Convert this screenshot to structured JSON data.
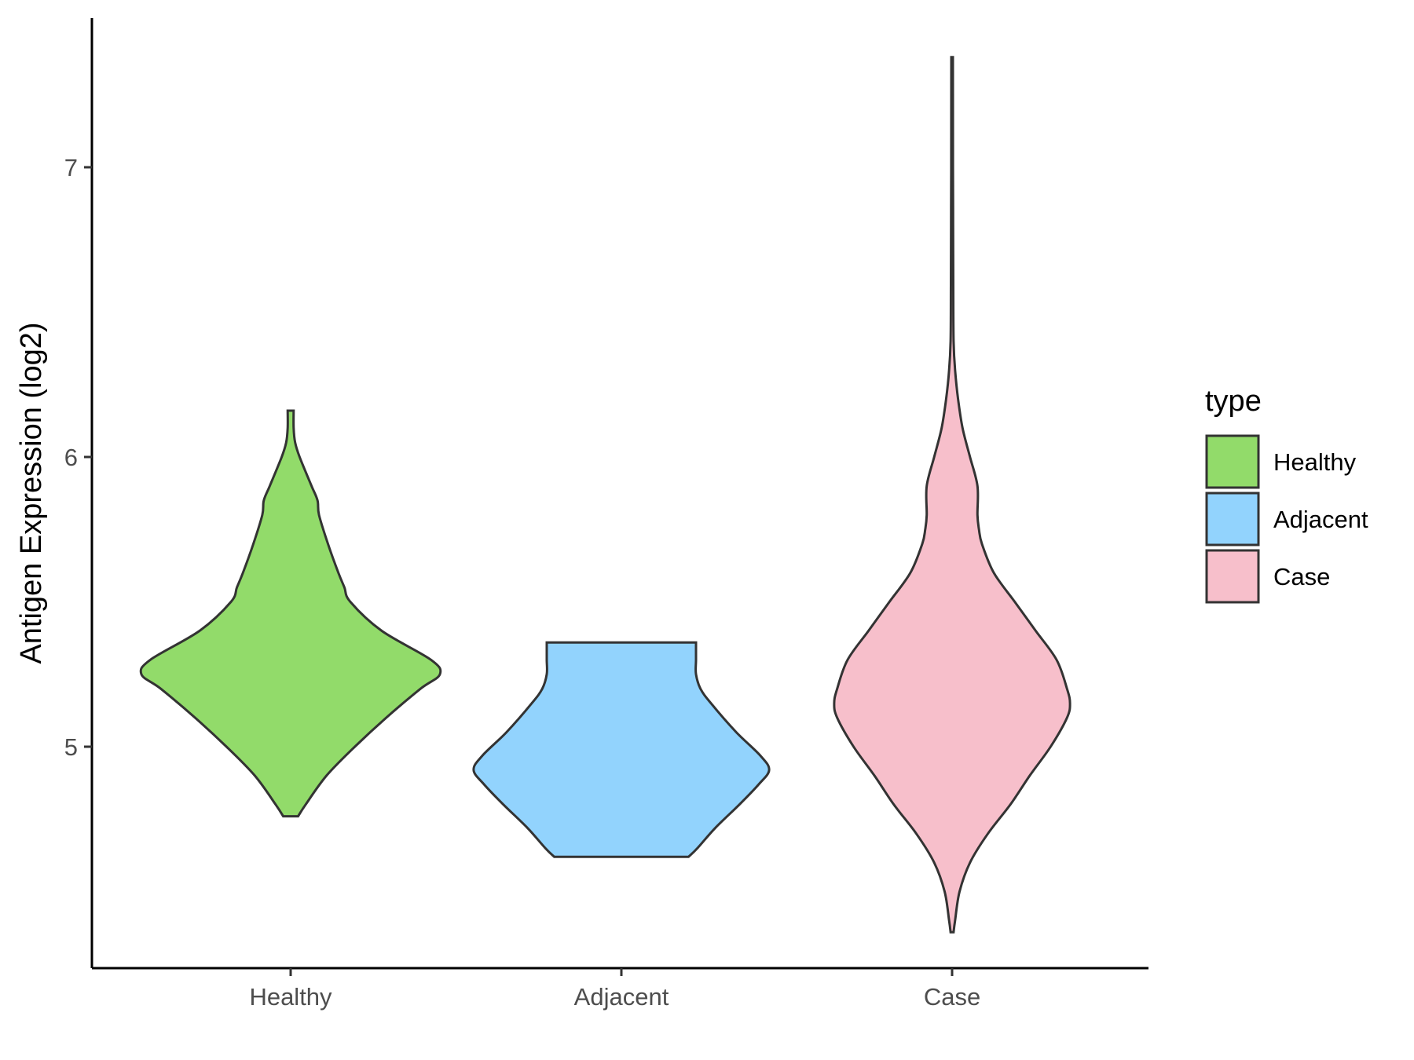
{
  "chart_data": {
    "type": "violin",
    "title": "",
    "xlabel": "",
    "ylabel": "Antigen Expression (log2)",
    "categories": [
      "Healthy",
      "Adjacent",
      "Case"
    ],
    "yticks": [
      5,
      6,
      7
    ],
    "ylim": [
      4.26,
      7.52
    ],
    "grid": false,
    "legend": {
      "title": "type",
      "position": "right",
      "items": [
        {
          "label": "Healthy",
          "color": "#92DB6A"
        },
        {
          "label": "Adjacent",
          "color": "#92D3FD"
        },
        {
          "label": "Case",
          "color": "#F7BFCB"
        }
      ]
    },
    "series": [
      {
        "category": "Healthy",
        "color": "#92DB6A",
        "ymin": 4.76,
        "ymax": 6.16,
        "profile": [
          [
            4.76,
            0.05
          ],
          [
            4.8,
            0.1
          ],
          [
            4.9,
            0.24
          ],
          [
            5.0,
            0.43
          ],
          [
            5.1,
            0.64
          ],
          [
            5.2,
            0.87
          ],
          [
            5.25,
            1.0
          ],
          [
            5.3,
            0.94
          ],
          [
            5.4,
            0.61
          ],
          [
            5.5,
            0.4
          ],
          [
            5.55,
            0.36
          ],
          [
            5.6,
            0.32
          ],
          [
            5.7,
            0.25
          ],
          [
            5.8,
            0.19
          ],
          [
            5.85,
            0.18
          ],
          [
            5.9,
            0.14
          ],
          [
            6.0,
            0.06
          ],
          [
            6.05,
            0.03
          ],
          [
            6.1,
            0.02
          ],
          [
            6.16,
            0.02
          ]
        ]
      },
      {
        "category": "Adjacent",
        "color": "#92D3FD",
        "ymin": 4.62,
        "ymax": 5.36,
        "profile": [
          [
            4.62,
            0.45
          ],
          [
            4.65,
            0.51
          ],
          [
            4.72,
            0.63
          ],
          [
            4.8,
            0.79
          ],
          [
            4.87,
            0.92
          ],
          [
            4.92,
            0.99
          ],
          [
            4.97,
            0.93
          ],
          [
            5.05,
            0.77
          ],
          [
            5.15,
            0.6
          ],
          [
            5.2,
            0.53
          ],
          [
            5.25,
            0.5
          ],
          [
            5.3,
            0.5
          ],
          [
            5.36,
            0.5
          ]
        ]
      },
      {
        "category": "Case",
        "color": "#F7BFCB",
        "ymin": 4.36,
        "ymax": 7.38,
        "profile": [
          [
            4.36,
            0.01
          ],
          [
            4.4,
            0.02
          ],
          [
            4.5,
            0.05
          ],
          [
            4.6,
            0.12
          ],
          [
            4.7,
            0.24
          ],
          [
            4.8,
            0.39
          ],
          [
            4.9,
            0.52
          ],
          [
            5.0,
            0.66
          ],
          [
            5.1,
            0.77
          ],
          [
            5.15,
            0.79
          ],
          [
            5.2,
            0.77
          ],
          [
            5.3,
            0.7
          ],
          [
            5.4,
            0.56
          ],
          [
            5.5,
            0.42
          ],
          [
            5.6,
            0.28
          ],
          [
            5.7,
            0.2
          ],
          [
            5.75,
            0.18
          ],
          [
            5.8,
            0.17
          ],
          [
            5.9,
            0.17
          ],
          [
            6.0,
            0.12
          ],
          [
            6.1,
            0.07
          ],
          [
            6.2,
            0.04
          ],
          [
            6.3,
            0.02
          ],
          [
            6.4,
            0.01
          ],
          [
            6.6,
            0.008
          ],
          [
            6.8,
            0.007
          ],
          [
            7.0,
            0.006
          ],
          [
            7.38,
            0.005
          ]
        ]
      }
    ]
  }
}
